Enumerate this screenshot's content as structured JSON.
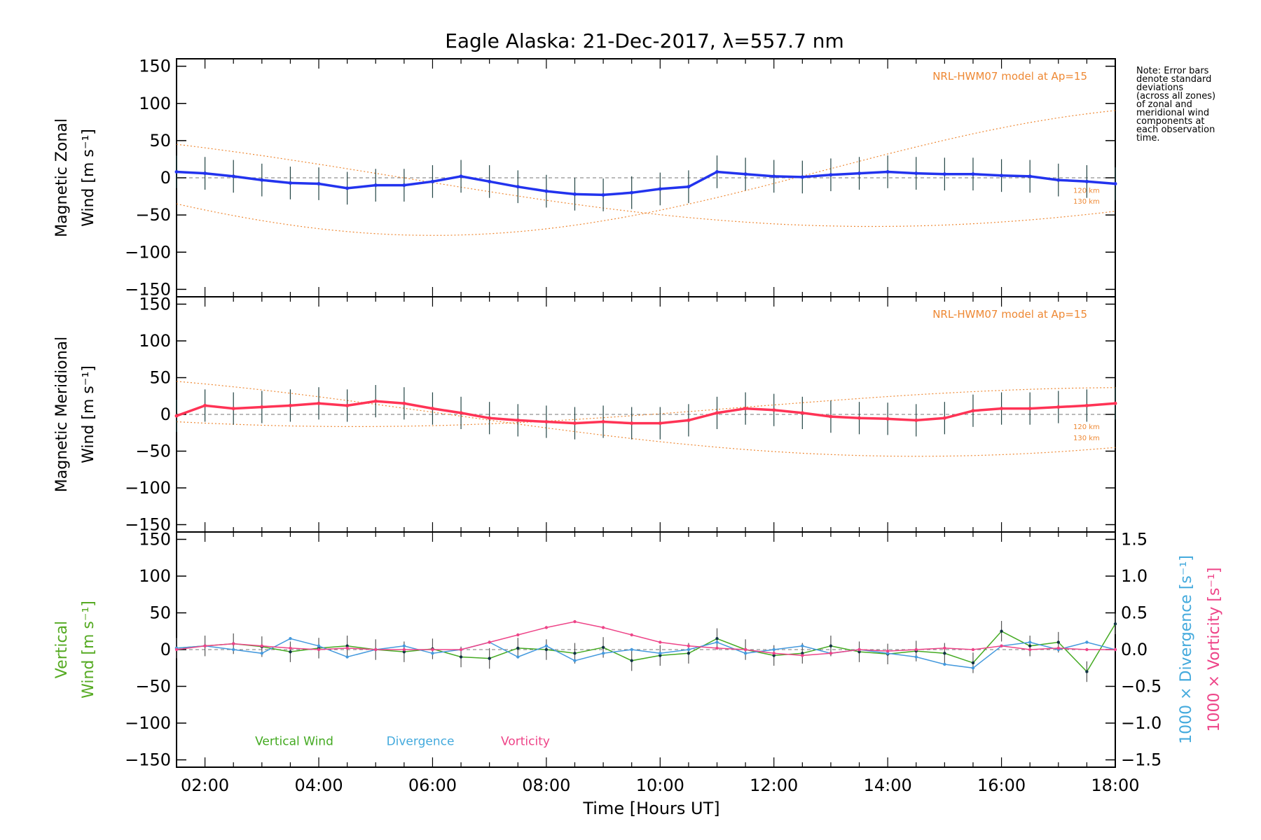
{
  "chart_data": {
    "type": "line",
    "title": "Eagle Alaska: 21-Dec-2017, λ=557.7 nm",
    "xlabel": "Time [Hours UT]",
    "xticks": [
      "02:00",
      "04:00",
      "06:00",
      "08:00",
      "10:00",
      "12:00",
      "14:00",
      "16:00",
      "18:00"
    ],
    "xlim": [
      1.5,
      18.0
    ],
    "note": [
      "Note: Error bars",
      "denote standard",
      "deviations",
      "(across all zones)",
      "of zonal and",
      "meridional wind",
      "components at",
      "each observation",
      "time."
    ],
    "model_label": "NRL-HWM07 model at Ap=15",
    "model_altitudes": [
      "120 km",
      "130 km"
    ],
    "panels": [
      {
        "id": "zonal",
        "ylabel_line1": "Magnetic Zonal",
        "ylabel_line2": "Wind [m s⁻¹]",
        "ylim": [
          -160,
          160
        ],
        "yticks": [
          150,
          100,
          50,
          0,
          -50,
          -100,
          -150
        ],
        "series": [
          {
            "name": "Zonal wind",
            "color": "#2233ee",
            "x": [
              1.5,
              2.0,
              2.5,
              3.0,
              3.5,
              4.0,
              4.5,
              5.0,
              5.5,
              6.0,
              6.5,
              7.0,
              7.5,
              8.0,
              8.5,
              9.0,
              9.5,
              10.0,
              10.5,
              11.0,
              11.5,
              12.0,
              12.5,
              13.0,
              13.5,
              14.0,
              14.5,
              15.0,
              15.5,
              16.0,
              16.5,
              17.0,
              17.5,
              18.0
            ],
            "y": [
              8,
              6,
              2,
              -3,
              -7,
              -8,
              -14,
              -10,
              -10,
              -5,
              2,
              -5,
              -12,
              -18,
              -22,
              -23,
              -20,
              -15,
              -12,
              8,
              5,
              2,
              1,
              4,
              6,
              8,
              6,
              5,
              5,
              3,
              2,
              -3,
              -5,
              -8
            ]
          }
        ]
      },
      {
        "id": "meridional",
        "ylabel_line1": "Magnetic Meridional",
        "ylabel_line2": "Wind [m s⁻¹]",
        "ylim": [
          -160,
          160
        ],
        "yticks": [
          150,
          100,
          50,
          0,
          -50,
          -100,
          -150
        ],
        "series": [
          {
            "name": "Meridional wind",
            "color": "#ff3355",
            "x": [
              1.5,
              2.0,
              2.5,
              3.0,
              3.5,
              4.0,
              4.5,
              5.0,
              5.5,
              6.0,
              6.5,
              7.0,
              7.5,
              8.0,
              8.5,
              9.0,
              9.5,
              10.0,
              10.5,
              11.0,
              11.5,
              12.0,
              12.5,
              13.0,
              13.5,
              14.0,
              14.5,
              15.0,
              15.5,
              16.0,
              16.5,
              17.0,
              17.5,
              18.0
            ],
            "y": [
              -2,
              12,
              8,
              10,
              12,
              15,
              12,
              18,
              15,
              8,
              2,
              -5,
              -8,
              -10,
              -12,
              -10,
              -12,
              -12,
              -8,
              2,
              8,
              6,
              2,
              -3,
              -5,
              -6,
              -8,
              -5,
              5,
              8,
              8,
              10,
              12,
              15
            ]
          }
        ]
      },
      {
        "id": "vertical",
        "ylabel_line1": "Vertical",
        "ylabel_line2": "Wind [m s⁻¹]",
        "ylim": [
          -160,
          160
        ],
        "yticks": [
          150,
          100,
          50,
          0,
          -50,
          -100,
          -150
        ],
        "right_axis": {
          "ylim": [
            -1.6,
            1.6
          ],
          "yticks": [
            "1.5",
            "1.0",
            "0.5",
            "0.0",
            "−0.5",
            "−1.0",
            "−1.5"
          ],
          "label_div": "1000 × Divergence [s⁻¹]",
          "label_vort": "1000 × Vorticity [s⁻¹]"
        },
        "legend": [
          "Vertical Wind",
          "Divergence",
          "Vorticity"
        ],
        "series": [
          {
            "name": "Vertical Wind",
            "color": "#44aa22",
            "x": [
              1.5,
              2.0,
              2.5,
              3.0,
              3.5,
              4.0,
              4.5,
              5.0,
              5.5,
              6.0,
              6.5,
              7.0,
              7.5,
              8.0,
              8.5,
              9.0,
              9.5,
              10.0,
              10.5,
              11.0,
              11.5,
              12.0,
              12.5,
              13.0,
              13.5,
              14.0,
              14.5,
              15.0,
              15.5,
              16.0,
              16.5,
              17.0,
              17.5,
              18.0
            ],
            "y": [
              2,
              5,
              8,
              4,
              -3,
              2,
              5,
              0,
              -3,
              1,
              -10,
              -12,
              2,
              0,
              -5,
              3,
              -15,
              -8,
              -5,
              15,
              0,
              -8,
              -5,
              5,
              -3,
              -6,
              -2,
              -5,
              -18,
              25,
              5,
              10,
              -30,
              35
            ]
          },
          {
            "name": "Divergence",
            "color": "#4499dd",
            "x": [
              1.5,
              2.0,
              2.5,
              3.0,
              3.5,
              4.0,
              4.5,
              5.0,
              5.5,
              6.0,
              6.5,
              7.0,
              7.5,
              8.0,
              8.5,
              9.0,
              9.5,
              10.0,
              10.5,
              11.0,
              11.5,
              12.0,
              12.5,
              13.0,
              13.5,
              14.0,
              14.5,
              15.0,
              15.5,
              16.0,
              16.5,
              17.0,
              17.5,
              18.0
            ],
            "y": [
              0.02,
              0.05,
              0.0,
              -0.05,
              0.15,
              0.05,
              -0.1,
              0.0,
              0.05,
              -0.05,
              0.0,
              0.1,
              -0.1,
              0.05,
              -0.15,
              -0.05,
              0.0,
              -0.05,
              0.0,
              0.1,
              -0.05,
              0.0,
              0.05,
              -0.05,
              0.0,
              -0.05,
              -0.1,
              -0.2,
              -0.25,
              0.05,
              0.1,
              0.0,
              0.1,
              0.0
            ]
          },
          {
            "name": "Vorticity",
            "color": "#ee4488",
            "x": [
              1.5,
              2.0,
              2.5,
              3.0,
              3.5,
              4.0,
              4.5,
              5.0,
              5.5,
              6.0,
              6.5,
              7.0,
              7.5,
              8.0,
              8.5,
              9.0,
              9.5,
              10.0,
              10.5,
              11.0,
              11.5,
              12.0,
              12.5,
              13.0,
              13.5,
              14.0,
              14.5,
              15.0,
              15.5,
              16.0,
              16.5,
              17.0,
              17.5,
              18.0
            ],
            "y": [
              0.0,
              0.05,
              0.08,
              0.05,
              0.02,
              0.0,
              0.02,
              0.0,
              0.0,
              0.0,
              0.0,
              0.1,
              0.2,
              0.3,
              0.38,
              0.3,
              0.2,
              0.1,
              0.05,
              0.02,
              0.0,
              -0.05,
              -0.08,
              -0.05,
              0.0,
              -0.02,
              0.0,
              0.02,
              0.0,
              0.05,
              0.0,
              0.02,
              0.0,
              0.0
            ]
          }
        ]
      }
    ]
  }
}
